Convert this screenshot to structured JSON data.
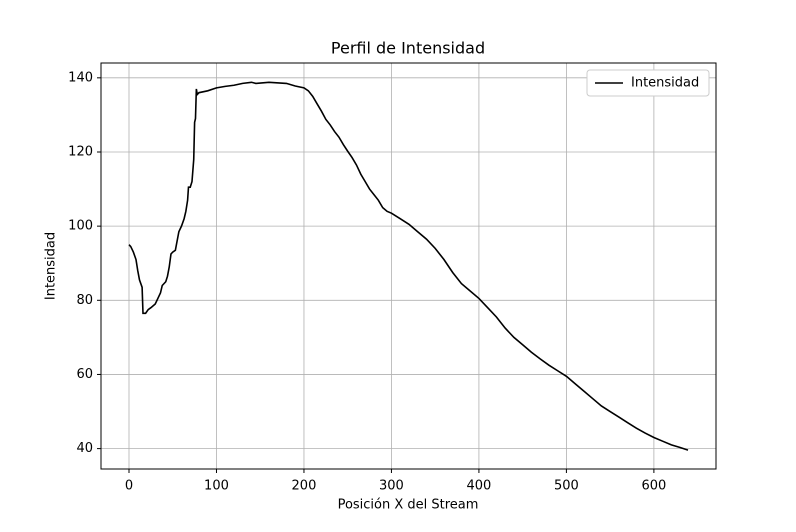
{
  "chart_data": {
    "type": "line",
    "title": "Perfil de Intensidad",
    "xlabel": "Posición X del Stream",
    "ylabel": "Intensidad",
    "xlim": [
      -32,
      671
    ],
    "ylim": [
      34.5,
      144
    ],
    "xticks": [
      0,
      100,
      200,
      300,
      400,
      500,
      600
    ],
    "yticks": [
      40,
      60,
      80,
      100,
      120,
      140
    ],
    "grid": true,
    "legend": "upper right",
    "series": [
      {
        "name": "Intensidad",
        "color": "#000000",
        "x": [
          0,
          2,
          5,
          8,
          10,
          12,
          15,
          16,
          19,
          22,
          25,
          30,
          33,
          36,
          38,
          42,
          44,
          46,
          48,
          50,
          53,
          55,
          57,
          60,
          63,
          65,
          67,
          68,
          70,
          72,
          74,
          75,
          76,
          77,
          78,
          80,
          90,
          100,
          110,
          120,
          130,
          140,
          145,
          160,
          180,
          190,
          200,
          205,
          210,
          215,
          220,
          225,
          230,
          235,
          240,
          245,
          250,
          255,
          260,
          265,
          270,
          275,
          280,
          285,
          290,
          295,
          300,
          310,
          320,
          330,
          340,
          350,
          360,
          370,
          380,
          390,
          400,
          410,
          420,
          430,
          440,
          450,
          460,
          470,
          480,
          490,
          500,
          510,
          520,
          530,
          540,
          550,
          560,
          570,
          580,
          590,
          600,
          610,
          620,
          630,
          639
        ],
        "values": [
          95,
          94.5,
          93,
          91,
          88,
          85.5,
          83.5,
          76.5,
          76.5,
          77.5,
          78,
          79,
          80.5,
          82,
          84,
          85,
          86.5,
          89,
          92.5,
          93,
          93.5,
          96,
          98.5,
          100,
          102,
          104,
          107,
          110.5,
          110.5,
          112,
          118,
          128,
          129,
          137,
          135.5,
          136,
          136.5,
          137.3,
          137.7,
          138,
          138.5,
          138.8,
          138.5,
          138.8,
          138.5,
          137.8,
          137.3,
          136.5,
          135,
          133,
          131,
          128.8,
          127.3,
          125.5,
          124,
          122,
          120.2,
          118.5,
          116.5,
          114,
          112,
          110,
          108.5,
          107,
          105,
          104,
          103.5,
          102,
          100.5,
          98.5,
          96.5,
          94,
          91,
          87.5,
          84.5,
          82.5,
          80.5,
          78,
          75.5,
          72.5,
          70,
          68,
          66,
          64.2,
          62.5,
          61,
          59.5,
          57.5,
          55.5,
          53.5,
          51.5,
          50,
          48.5,
          47,
          45.5,
          44.2,
          43,
          42,
          41,
          40.3,
          39.6
        ]
      }
    ]
  }
}
